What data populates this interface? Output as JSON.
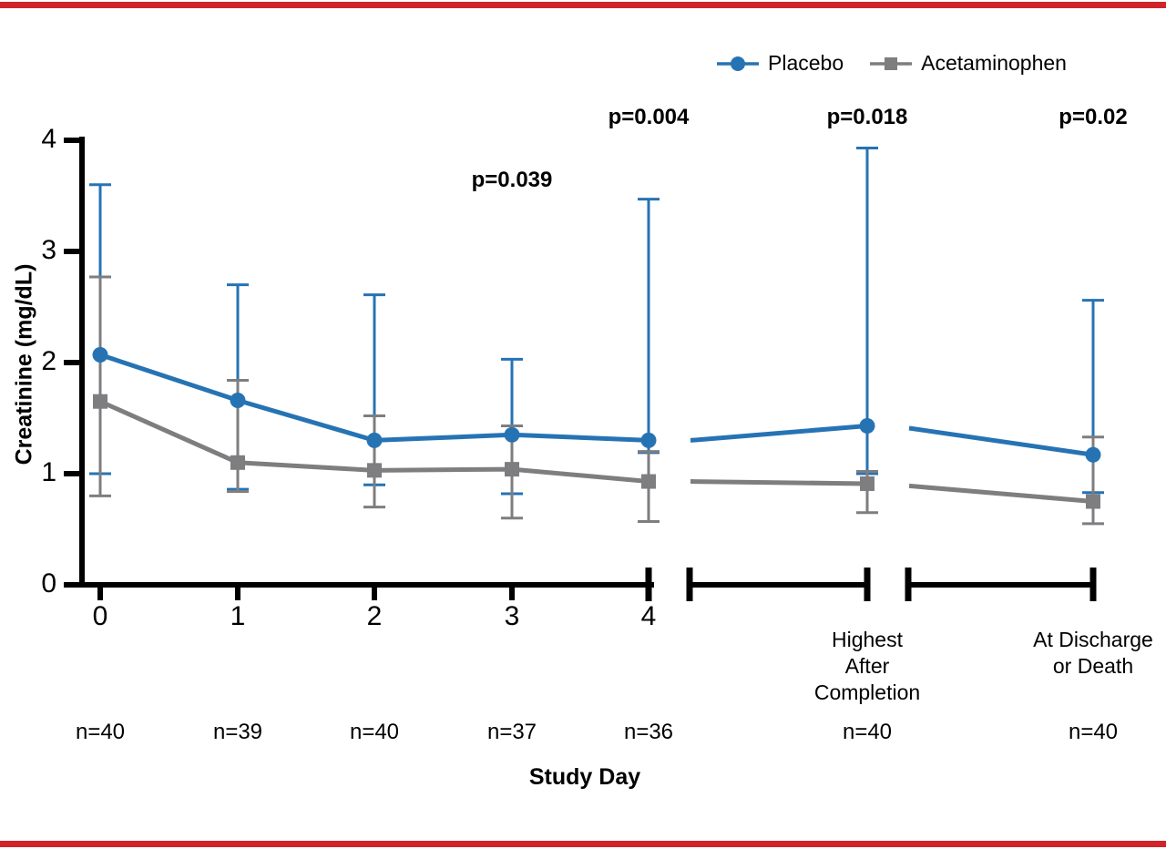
{
  "figure": {
    "border_color": "#d1232a",
    "background": "#ffffff"
  },
  "chart_data": {
    "type": "line",
    "title": "",
    "ylabel": "Creatinine (mg/dL)",
    "xlabel": "Study Day",
    "ylim": [
      0,
      4
    ],
    "yticks": [
      0,
      1,
      2,
      3,
      4
    ],
    "grid": false,
    "legend_position": "top-right",
    "axis_breaks": "x-axis broken into three bracketed segments after day 4",
    "categories": [
      "0",
      "1",
      "2",
      "3",
      "4",
      "Highest\nAfter\nCompletion",
      "At Discharge\nor Death"
    ],
    "n_labels": [
      "n=40",
      "n=39",
      "n=40",
      "n=37",
      "n=36",
      "n=40",
      "n=40"
    ],
    "p_annotations": [
      {
        "label": "p=0.039",
        "category_index": 3
      },
      {
        "label": "p=0.004",
        "category_index": 4
      },
      {
        "label": "p=0.018",
        "category_index": 5
      },
      {
        "label": "p=0.02",
        "category_index": 6
      }
    ],
    "series": [
      {
        "name": "Placebo",
        "color": "#2673b4",
        "marker": "circle",
        "values": [
          2.07,
          1.66,
          1.3,
          1.35,
          1.3,
          1.43,
          1.17
        ],
        "err_low": [
          1.0,
          0.86,
          0.9,
          0.82,
          1.19,
          1.0,
          0.83
        ],
        "err_high": [
          3.6,
          2.7,
          2.61,
          2.03,
          3.47,
          3.93,
          2.56
        ],
        "break_entry_values": [
          1.3,
          1.41
        ]
      },
      {
        "name": "Acetaminophen",
        "color": "#7e7e80",
        "marker": "square",
        "values": [
          1.65,
          1.1,
          1.03,
          1.04,
          0.93,
          0.91,
          0.75
        ],
        "err_low": [
          0.8,
          0.84,
          0.7,
          0.6,
          0.57,
          0.65,
          0.55
        ],
        "err_high": [
          2.77,
          1.84,
          1.52,
          1.43,
          1.2,
          1.02,
          1.33
        ],
        "break_entry_values": [
          0.93,
          0.89
        ]
      }
    ]
  }
}
